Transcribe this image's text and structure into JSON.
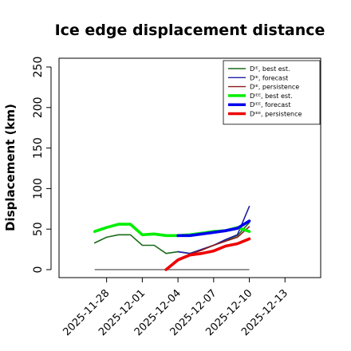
{
  "chart_data": {
    "type": "line",
    "title": "Ice edge displacement distance",
    "ylabel": "Displacement (km)",
    "xlabel": "",
    "ylim": [
      0,
      250
    ],
    "yticks": [
      0,
      50,
      100,
      150,
      200,
      250
    ],
    "xlim": [
      "2025-11-24",
      "2025-12-16"
    ],
    "xticks": [
      "2025-11-28",
      "2025-12-01",
      "2025-12-04",
      "2025-12-07",
      "2025-12-10",
      "2025-12-13"
    ],
    "highlighted_xtick": "2025-12-04",
    "highlight_color": "#228B22",
    "grid": false,
    "legend_position": "top-right",
    "series": [
      {
        "name": "Dᴵᴱ, best est.",
        "color": "#1a6b1a",
        "width": "thin",
        "x": [
          "2025-11-27",
          "2025-11-28",
          "2025-11-29",
          "2025-11-30",
          "2025-12-01",
          "2025-12-02",
          "2025-12-03",
          "2025-12-04",
          "2025-12-05",
          "2025-12-06",
          "2025-12-07",
          "2025-12-08",
          "2025-12-09",
          "2025-12-10"
        ],
        "y": [
          33,
          40,
          43,
          43,
          30,
          30,
          20,
          22,
          20,
          25,
          30,
          36,
          42,
          58
        ]
      },
      {
        "name": "Dᴵᴱ, forecast",
        "color": "#1f1fa8",
        "width": "thin",
        "x": [
          "2025-12-04",
          "2025-12-05",
          "2025-12-06",
          "2025-12-07",
          "2025-12-08",
          "2025-12-09",
          "2025-12-10"
        ],
        "y": [
          22,
          20,
          25,
          30,
          37,
          43,
          78
        ]
      },
      {
        "name": "Dᴵᴱ, persistence",
        "color": "#8b1a1a",
        "width": "thin",
        "x": [
          "2025-12-03",
          "2025-12-04",
          "2025-12-05",
          "2025-12-06",
          "2025-12-07",
          "2025-12-08",
          "2025-12-09",
          "2025-12-10"
        ],
        "y": [
          0,
          13,
          19,
          24,
          30,
          35,
          40,
          53
        ]
      },
      {
        "name": "Dᴵᴱᴱ, best est.",
        "color": "#00ee00",
        "width": "thick",
        "x": [
          "2025-11-27",
          "2025-11-28",
          "2025-11-29",
          "2025-11-30",
          "2025-12-01",
          "2025-12-02",
          "2025-12-03",
          "2025-12-04",
          "2025-12-05",
          "2025-12-06",
          "2025-12-07",
          "2025-12-08",
          "2025-12-09",
          "2025-12-10"
        ],
        "y": [
          47,
          52,
          56,
          56,
          43,
          44,
          42,
          42,
          43,
          45,
          47,
          48,
          52,
          47
        ]
      },
      {
        "name": "Dᴵᴱᴱ, forecast",
        "color": "#0000ee",
        "width": "thick",
        "x": [
          "2025-12-04",
          "2025-12-05",
          "2025-12-06",
          "2025-12-07",
          "2025-12-08",
          "2025-12-09",
          "2025-12-10"
        ],
        "y": [
          42,
          42,
          44,
          46,
          48,
          51,
          60
        ]
      },
      {
        "name": "Dᴵᴱᴱ, persistence",
        "color": "#ee0000",
        "width": "thick",
        "x": [
          "2025-12-03",
          "2025-12-04",
          "2025-12-05",
          "2025-12-06",
          "2025-12-07",
          "2025-12-08",
          "2025-12-09",
          "2025-12-10"
        ],
        "y": [
          0,
          12,
          18,
          20,
          23,
          29,
          32,
          38
        ]
      }
    ],
    "reference_line": {
      "color": "#555555",
      "x": [
        "2025-11-27",
        "2025-12-10"
      ],
      "y": [
        0,
        0
      ]
    }
  }
}
